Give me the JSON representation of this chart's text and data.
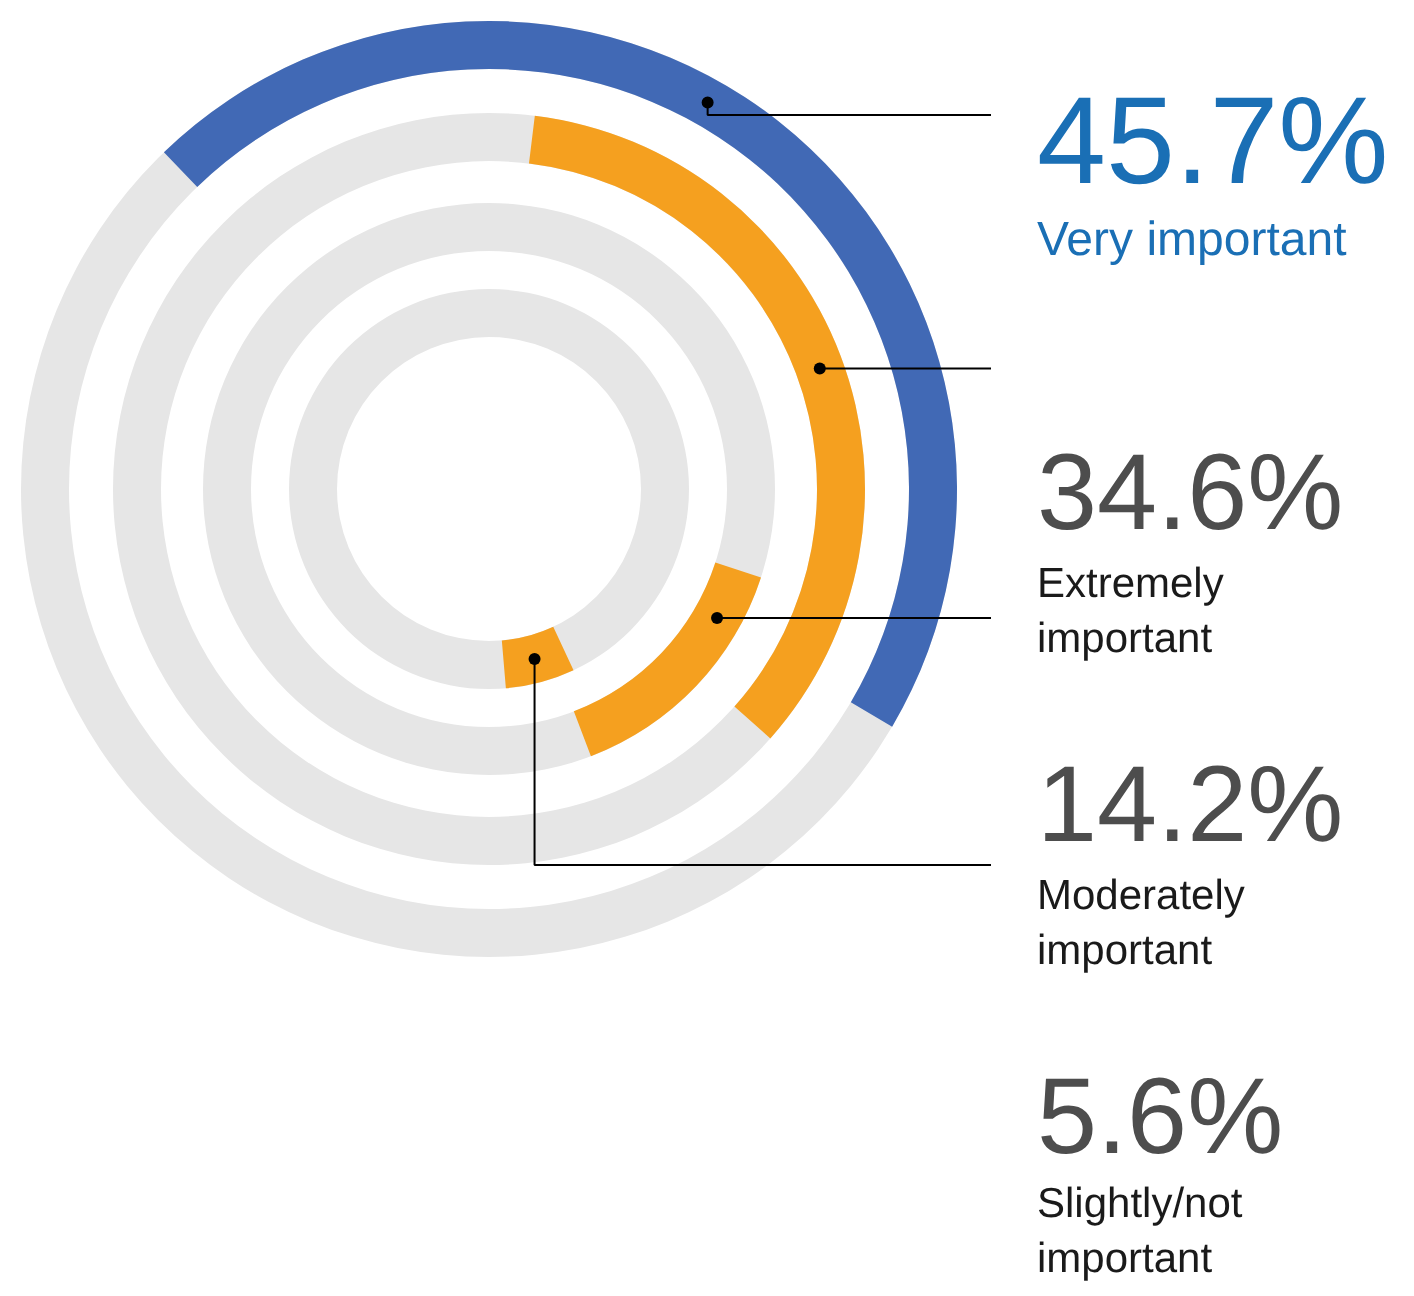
{
  "chart_data": {
    "type": "other",
    "categories": [
      "Very important",
      "Extremely important",
      "Moderately important",
      "Slightly/not important"
    ],
    "values": [
      45.7,
      34.6,
      14.2,
      5.6
    ],
    "colors": [
      "#4169b5",
      "#f5a01f",
      "#f5a01f",
      "#f5a01f"
    ],
    "value_labels": [
      "45.7%",
      "34.6%",
      "14.2%",
      "5.6%"
    ]
  }
}
